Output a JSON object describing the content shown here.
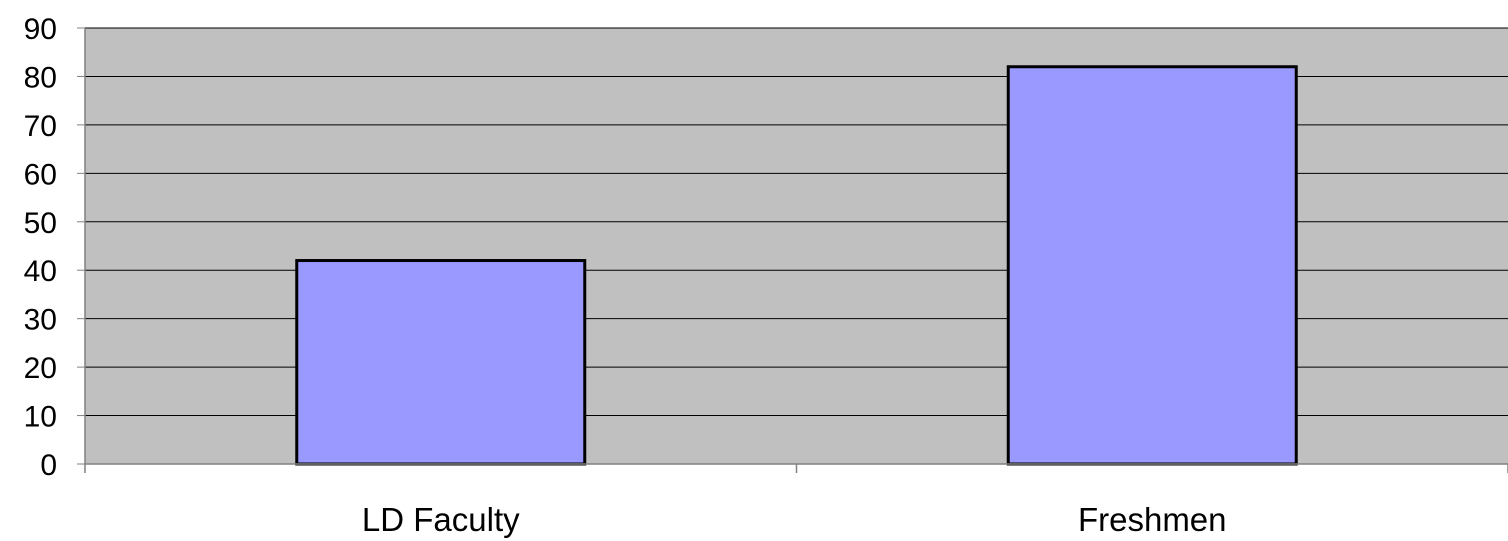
{
  "chart_data": {
    "type": "bar",
    "categories": [
      "LD Faculty",
      "Freshmen"
    ],
    "values": [
      42,
      82
    ],
    "title": "",
    "xlabel": "",
    "ylabel": "",
    "ylim": [
      0,
      90
    ],
    "ytick_step": 10,
    "yticks": [
      "0",
      "10",
      "20",
      "30",
      "40",
      "50",
      "60",
      "70",
      "80",
      "90"
    ],
    "grid": true,
    "legend": "none",
    "colors": {
      "plot_background": "#c0c0c0",
      "bar_fill": "#9999ff",
      "bar_stroke": "#000000",
      "gridline": "#000000",
      "axis": "#808080"
    }
  }
}
